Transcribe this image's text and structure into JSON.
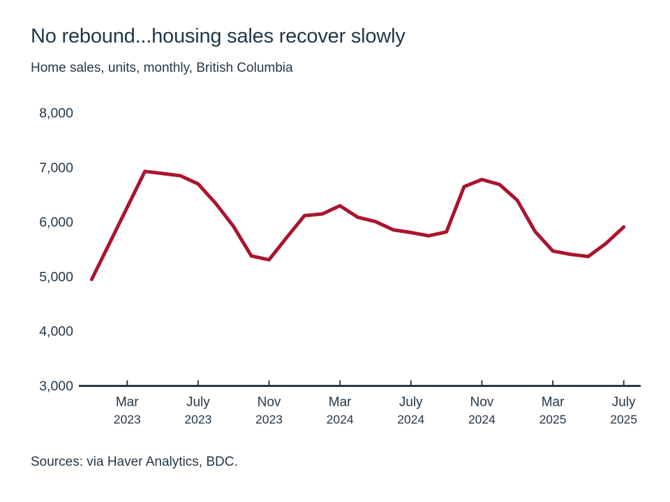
{
  "chart_data": {
    "type": "line",
    "title": "No rebound...housing sales recover slowly",
    "subtitle": "Home sales, units, monthly, British Columbia",
    "source": "Sources: via Haver Analytics, BDC.",
    "series_name": "home-sales-bc",
    "x": [
      "Jan 2023",
      "Feb 2023",
      "Mar 2023",
      "Apr 2023",
      "May 2023",
      "Jun 2023",
      "Jul 2023",
      "Aug 2023",
      "Sep 2023",
      "Oct 2023",
      "Nov 2023",
      "Dec 2023",
      "Jan 2024",
      "Feb 2024",
      "Mar 2024",
      "Apr 2024",
      "May 2024",
      "Jun 2024",
      "Jul 2024",
      "Aug 2024",
      "Sep 2024",
      "Oct 2024",
      "Nov 2024",
      "Dec 2024",
      "Jan 2025",
      "Feb 2025",
      "Mar 2025",
      "Apr 2025",
      "May 2025",
      "Jun 2025",
      "Jul 2025"
    ],
    "values": [
      4950,
      5610,
      6270,
      6930,
      6890,
      6850,
      6700,
      6340,
      5920,
      5380,
      5310,
      5720,
      6120,
      6150,
      6300,
      6090,
      6010,
      5860,
      5810,
      5750,
      5820,
      6650,
      6780,
      6690,
      6400,
      5830,
      5470,
      5410,
      5370,
      5610,
      5910
    ],
    "ylim": [
      3000,
      8000
    ],
    "y_ticks": [
      8000,
      7000,
      6000,
      5000,
      4000,
      3000
    ],
    "x_ticks": [
      {
        "month": "Mar",
        "year": "2023",
        "index": 2
      },
      {
        "month": "July",
        "year": "2023",
        "index": 6
      },
      {
        "month": "Nov",
        "year": "2023",
        "index": 10
      },
      {
        "month": "Mar",
        "year": "2024",
        "index": 14
      },
      {
        "month": "July",
        "year": "2024",
        "index": 18
      },
      {
        "month": "Nov",
        "year": "2024",
        "index": 22
      },
      {
        "month": "Mar",
        "year": "2025",
        "index": 26
      },
      {
        "month": "July",
        "year": "2025",
        "index": 30
      }
    ],
    "grid": false,
    "legend": "none",
    "line_color": "#ab142e",
    "text_color": "#24394a",
    "title_color": "#1f3848",
    "axis_color": "#24394a",
    "background_color": "#ffffff"
  }
}
